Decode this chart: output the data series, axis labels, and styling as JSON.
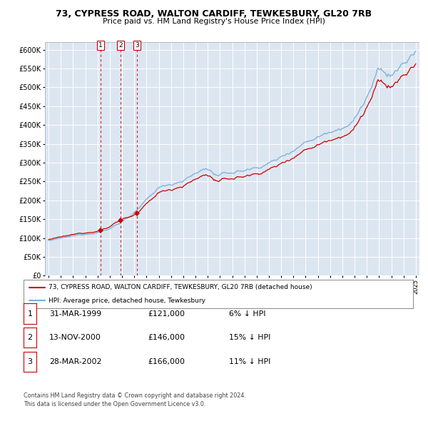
{
  "title": "73, CYPRESS ROAD, WALTON CARDIFF, TEWKESBURY, GL20 7RB",
  "subtitle": "Price paid vs. HM Land Registry's House Price Index (HPI)",
  "legend_line1": "73, CYPRESS ROAD, WALTON CARDIFF, TEWKESBURY, GL20 7RB (detached house)",
  "legend_line2": "HPI: Average price, detached house, Tewkesbury",
  "transactions": [
    {
      "num": 1,
      "date": "31-MAR-1999",
      "price": 121000,
      "pct": "6%",
      "dir": "↓"
    },
    {
      "num": 2,
      "date": "13-NOV-2000",
      "price": 146000,
      "pct": "15%",
      "dir": "↓"
    },
    {
      "num": 3,
      "date": "28-MAR-2002",
      "price": 166000,
      "pct": "11%",
      "dir": "↓"
    }
  ],
  "transaction_dates_decimal": [
    1999.24,
    2000.87,
    2002.24
  ],
  "transaction_prices": [
    121000,
    146000,
    166000
  ],
  "footer1": "Contains HM Land Registry data © Crown copyright and database right 2024.",
  "footer2": "This data is licensed under the Open Government Licence v3.0.",
  "red_color": "#cc0000",
  "blue_color": "#7aaed6",
  "bg_color": "#dce6f1",
  "grid_color": "#ffffff",
  "ylim": [
    0,
    620000
  ],
  "yticks": [
    0,
    50000,
    100000,
    150000,
    200000,
    250000,
    300000,
    350000,
    400000,
    450000,
    500000,
    550000,
    600000
  ],
  "xstart_year": 1995,
  "xend_year": 2025
}
